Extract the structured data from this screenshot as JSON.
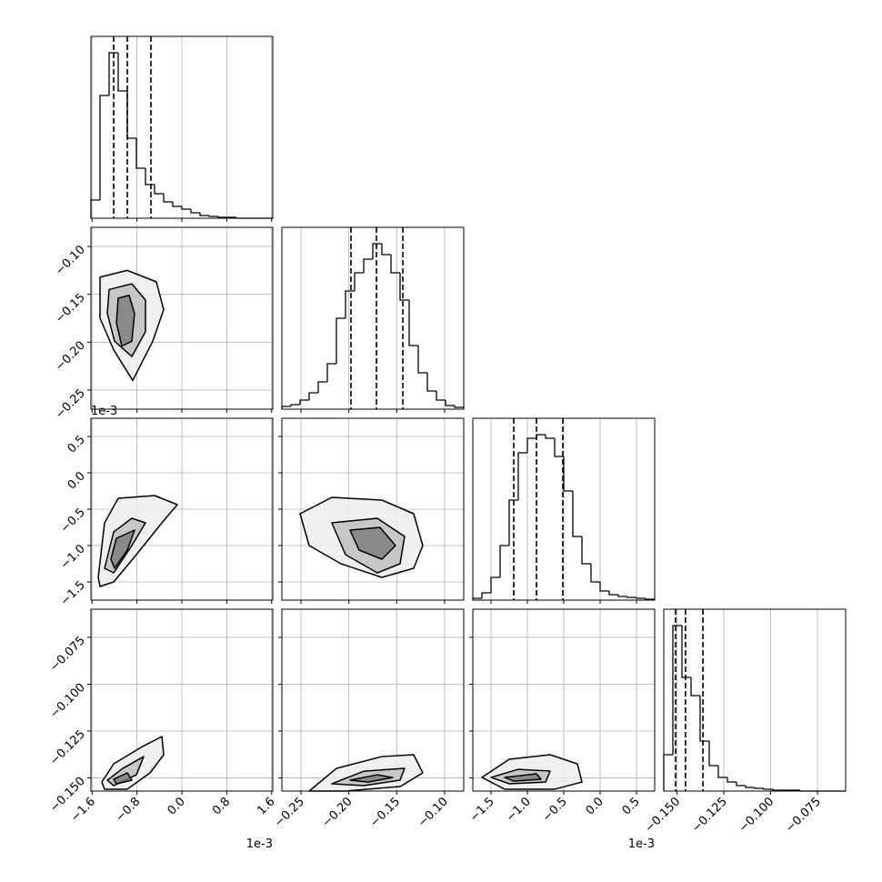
{
  "chart_data": {
    "type": "corner",
    "hist_ylim": [
      0,
      200
    ],
    "parameters": [
      {
        "lim": [
          -1.62,
          1.62
        ],
        "offset": "1e-3",
        "ticks": [
          {
            "value": -1.6,
            "label": "−1.6"
          },
          {
            "value": -0.8,
            "label": "−0.8"
          },
          {
            "value": 0,
            "label": "0.0"
          },
          0.8,
          1.6
        ]
      },
      {
        "lim": [
          -0.27,
          -0.08
        ],
        "ticks": [
          {
            "value": -0.25,
            "label": "−0.25"
          },
          {
            "value": -0.2,
            "label": "−0.20"
          },
          {
            "value": -0.15,
            "label": "−0.15"
          },
          {
            "value": -0.1,
            "label": "−0.10"
          }
        ]
      },
      {
        "lim": [
          -1.75,
          0.75
        ],
        "offset": "1e-3",
        "ticks": [
          {
            "value": -1.5,
            "label": "−1.5"
          },
          {
            "value": -1.0,
            "label": "−1.0"
          },
          {
            "value": -0.5,
            "label": "−0.5"
          },
          {
            "value": 0,
            "label": "0.0"
          },
          0.5
        ]
      },
      {
        "lim": [
          -0.157,
          -0.06
        ],
        "ticks": [
          {
            "value": -0.15,
            "label": "−0.150"
          },
          {
            "value": -0.125,
            "label": "−0.125"
          },
          {
            "value": -0.1,
            "label": "−0.100"
          },
          {
            "value": -0.075,
            "label": "−0.075"
          }
        ]
      }
    ],
    "histograms": [
      {
        "bins": [
          -1.62,
          -1.458,
          -1.296,
          -1.134,
          -0.972,
          -0.81,
          -0.648,
          -0.486,
          -0.324,
          -0.162,
          0,
          0.162,
          0.324,
          0.486,
          0.648,
          0.81,
          0.972,
          1.134,
          1.296,
          1.458,
          1.62
        ],
        "counts": [
          20,
          135,
          182,
          140,
          88,
          55,
          37,
          27,
          18,
          13,
          10,
          6,
          3,
          2,
          1,
          1,
          0,
          0,
          0,
          0
        ],
        "quantiles": [
          -1.215,
          -0.972,
          -0.551
        ]
      },
      {
        "bins": [
          -0.27,
          -0.2605,
          -0.251,
          -0.2415,
          -0.232,
          -0.2225,
          -0.213,
          -0.2035,
          -0.194,
          -0.1845,
          -0.175,
          -0.1655,
          -0.156,
          -0.1465,
          -0.137,
          -0.1275,
          -0.118,
          -0.1085,
          -0.099,
          -0.0895,
          -0.08
        ],
        "counts": [
          3,
          5,
          10,
          18,
          30,
          50,
          100,
          130,
          150,
          165,
          182,
          170,
          150,
          120,
          70,
          40,
          20,
          10,
          4,
          2
        ],
        "quantiles": [
          -0.1978,
          -0.1712,
          -0.1436
        ]
      },
      {
        "bins": [
          -1.75,
          -1.625,
          -1.5,
          -1.375,
          -1.25,
          -1.125,
          -1,
          -0.875,
          -0.75,
          -0.625,
          -0.5,
          -0.375,
          -0.25,
          -0.125,
          0,
          0.125,
          0.25,
          0.375,
          0.5,
          0.625,
          0.75
        ],
        "counts": [
          2,
          8,
          25,
          60,
          110,
          162,
          178,
          182,
          178,
          158,
          120,
          70,
          40,
          20,
          10,
          6,
          4,
          3,
          2,
          1
        ],
        "quantiles": [
          -1.1875,
          -0.875,
          -0.5125
        ]
      },
      {
        "bins": [
          -0.157,
          -0.15215,
          -0.1473,
          -0.14245,
          -0.1376,
          -0.13275,
          -0.1279,
          -0.12305,
          -0.1182,
          -0.11335,
          -0.1085,
          -0.10365,
          -0.0988,
          -0.09395,
          -0.0891,
          -0.08425,
          -0.0794,
          -0.07455,
          -0.0697,
          -0.06485,
          -0.06
        ],
        "counts": [
          40,
          182,
          125,
          105,
          55,
          28,
          15,
          10,
          6,
          4,
          3,
          2,
          1,
          1,
          1,
          0,
          0,
          0,
          0,
          0
        ],
        "quantiles": [
          -0.1507,
          -0.1454,
          -0.1361
        ]
      }
    ],
    "contours": [
      {
        "x_param": 0,
        "y_param": 1,
        "levels": [
          {
            "x": [
              -1.458,
              -0.972,
              -0.454,
              -0.324,
              -0.518,
              -0.875,
              -1.215,
              -1.458
            ],
            "y": [
              -0.132,
              -0.125,
              -0.137,
              -0.166,
              -0.199,
              -0.24,
              -0.208,
              -0.175
            ]
          },
          {
            "x": [
              -1.296,
              -0.891,
              -0.648,
              -0.648,
              -0.891,
              -1.199,
              -1.328
            ],
            "y": [
              -0.145,
              -0.139,
              -0.156,
              -0.189,
              -0.215,
              -0.199,
              -0.17
            ]
          },
          {
            "x": [
              -1.134,
              -0.94,
              -0.843,
              -0.891,
              -1.069,
              -1.166
            ],
            "y": [
              -0.154,
              -0.151,
              -0.17,
              -0.199,
              -0.204,
              -0.18
            ]
          }
        ]
      },
      {
        "x_param": 0,
        "y_param": 2,
        "levels": [
          {
            "x": [
              -1.49,
              -1.377,
              -1.134,
              -0.486,
              -0.081,
              -0.356,
              -0.81,
              -1.215,
              -1.458
            ],
            "y": [
              -1.4375,
              -0.6875,
              -0.35,
              -0.3125,
              -0.4375,
              -0.6875,
              -1.125,
              -1.5,
              -1.5625
            ]
          },
          {
            "x": [
              -1.377,
              -1.215,
              -0.891,
              -0.648,
              -0.891,
              -1.215
            ],
            "y": [
              -1.3125,
              -0.8125,
              -0.625,
              -0.6875,
              -1.0,
              -1.375
            ]
          },
          {
            "x": [
              -1.264,
              -1.166,
              -0.842,
              -0.972,
              -1.199
            ],
            "y": [
              -1.1875,
              -0.9,
              -0.7875,
              -1.0625,
              -1.3125
            ]
          }
        ]
      },
      {
        "x_param": 1,
        "y_param": 2,
        "levels": [
          {
            "x": [
              -0.251,
              -0.2178,
              -0.1655,
              -0.1323,
              -0.1228,
              -0.1323,
              -0.1655,
              -0.2083,
              -0.2415
            ],
            "y": [
              -0.5625,
              -0.3375,
              -0.375,
              -0.5625,
              -1.0,
              -1.3125,
              -1.4375,
              -1.25,
              -1.0
            ]
          },
          {
            "x": [
              -0.2178,
              -0.1703,
              -0.1418,
              -0.1465,
              -0.1703,
              -0.2035
            ],
            "y": [
              -0.6875,
              -0.625,
              -0.875,
              -1.25,
              -1.375,
              -1.125
            ]
          },
          {
            "x": [
              -0.1988,
              -0.1675,
              -0.1513,
              -0.1655,
              -0.1893
            ],
            "y": [
              -0.7875,
              -0.75,
              -1.0,
              -1.1875,
              -1.0625
            ]
          }
        ]
      },
      {
        "x_param": 0,
        "y_param": 3,
        "levels": [
          {
            "x": [
              -1.426,
              -1.215,
              -0.729,
              -0.356,
              -0.324,
              -0.567,
              -0.972,
              -1.377
            ],
            "y": [
              -0.1522,
              -0.1425,
              -0.1337,
              -0.1279,
              -0.1376,
              -0.1473,
              -0.156,
              -0.156
            ]
          },
          {
            "x": [
              -1.328,
              -1.053,
              -0.68,
              -0.81,
              -1.215
            ],
            "y": [
              -0.1512,
              -0.1449,
              -0.1386,
              -0.1483,
              -0.1541
            ]
          },
          {
            "x": [
              -1.215,
              -0.972,
              -0.891,
              -1.166
            ],
            "y": [
              -0.1507,
              -0.1473,
              -0.1512,
              -0.1532
            ]
          }
        ]
      },
      {
        "x_param": 1,
        "y_param": 3,
        "levels": [
          {
            "x": [
              -0.2415,
              -0.213,
              -0.1655,
              -0.1323,
              -0.1228,
              -0.1465,
              -0.2035
            ],
            "y": [
              -0.157,
              -0.1449,
              -0.1386,
              -0.1376,
              -0.1473,
              -0.1546,
              -0.157
            ]
          },
          {
            "x": [
              -0.2178,
              -0.1845,
              -0.1418,
              -0.1465,
              -0.1845
            ],
            "y": [
              -0.1531,
              -0.1464,
              -0.1449,
              -0.1512,
              -0.1541
            ]
          },
          {
            "x": [
              -0.1988,
              -0.1703,
              -0.1542,
              -0.1798
            ],
            "y": [
              -0.1512,
              -0.1483,
              -0.1498,
              -0.1522
            ]
          }
        ]
      },
      {
        "x_param": 2,
        "y_param": 3,
        "levels": [
          {
            "x": [
              -1.625,
              -1.25,
              -0.6875,
              -0.3125,
              -0.25,
              -0.625,
              -1.3125
            ],
            "y": [
              -0.1497,
              -0.14,
              -0.1376,
              -0.1425,
              -0.1522,
              -0.156,
              -0.156
            ]
          },
          {
            "x": [
              -1.5,
              -1.125,
              -0.6875,
              -0.75,
              -1.25
            ],
            "y": [
              -0.1497,
              -0.1454,
              -0.1463,
              -0.1522,
              -0.1531
            ]
          },
          {
            "x": [
              -1.3125,
              -0.875,
              -0.8125,
              -1.1875
            ],
            "y": [
              -0.1497,
              -0.1478,
              -0.1507,
              -0.1517
            ]
          }
        ]
      }
    ]
  }
}
